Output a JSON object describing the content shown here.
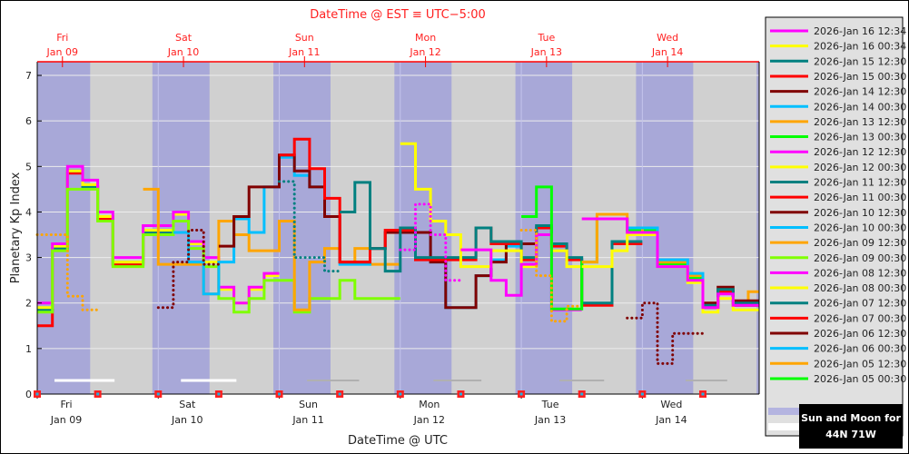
{
  "chart_data": {
    "type": "line",
    "step": true,
    "title": "DateTime @ EST ≡ UTC−5:00",
    "xlabel": "DateTime @ UTC",
    "ylabel": "Planetary Kp Index",
    "ylim": [
      0,
      7.3
    ],
    "yticks": [
      "0",
      "1",
      "2",
      "3",
      "4",
      "5",
      "6",
      "7"
    ],
    "x_range": [
      "2026-01-09T00:00Z",
      "2026-01-14T23:10Z"
    ],
    "grid": true,
    "legend_placement": "right",
    "x_ticks_utc": [
      {
        "day": "Fri",
        "date": "Jan 09"
      },
      {
        "day": "Sat",
        "date": "Jan 10"
      },
      {
        "day": "Sun",
        "date": "Jan 11"
      },
      {
        "day": "Mon",
        "date": "Jan 12"
      },
      {
        "day": "Tue",
        "date": "Jan 13"
      },
      {
        "day": "Wed",
        "date": "Jan 14"
      }
    ],
    "x_ticks_est": [
      {
        "day": "Fri",
        "date": "Jan 09"
      },
      {
        "day": "Sat",
        "date": "Jan 10"
      },
      {
        "day": "Sun",
        "date": "Jan 11"
      },
      {
        "day": "Mon",
        "date": "Jan 12"
      },
      {
        "day": "Tue",
        "date": "Jan 13"
      },
      {
        "day": "Wed",
        "date": "Jan 14"
      }
    ],
    "night_intervals": [
      [
        "2026-01-09T00:00Z",
        "2026-01-09T10:30Z"
      ],
      [
        "2026-01-09T22:50Z",
        "2026-01-10T10:10Z"
      ],
      [
        "2026-01-10T22:50Z",
        "2026-01-11T10:10Z"
      ],
      [
        "2026-01-11T22:50Z",
        "2026-01-12T10:10Z"
      ],
      [
        "2026-01-12T22:50Z",
        "2026-01-13T10:05Z"
      ],
      [
        "2026-01-13T22:45Z",
        "2026-01-14T10:05Z"
      ],
      [
        "2026-01-14T22:40Z",
        "2026-01-14T23:10Z"
      ]
    ],
    "moon_intervals": [
      [
        "2026-01-09T03:25Z",
        "2026-01-09T15:20Z"
      ],
      [
        "2026-01-10T04:30Z",
        "2026-01-10T15:30Z"
      ],
      [
        "2026-01-11T05:30Z",
        "2026-01-11T15:50Z"
      ],
      [
        "2026-01-12T06:35Z",
        "2026-01-12T16:05Z"
      ],
      [
        "2026-01-13T07:35Z",
        "2026-01-13T16:25Z"
      ],
      [
        "2026-01-14T08:35Z",
        "2026-01-14T16:50Z"
      ]
    ],
    "colors": {
      "night": "#a8a8d8",
      "day": "#d0d0d0",
      "est_axis": "#ff0000"
    },
    "series": [
      {
        "name": "2026-Jan 16 12:34",
        "color": "#ff00ff",
        "segments": [
          {
            "start": "2026-01-13T12:00Z",
            "dotted": false,
            "kp": [
              3.85,
              3.85,
              3.85,
              3.55,
              3.55,
              2.8,
              2.8,
              2.5,
              1.9,
              2.2,
              1.95,
              1.95
            ]
          }
        ]
      },
      {
        "name": "2026-Jan 16 00:34",
        "color": "#ffff00",
        "segments": [
          {
            "start": "2026-01-13T12:00Z",
            "dotted": false,
            "kp": [
              2.8,
              2.8,
              3.15,
              3.5,
              3.5,
              2.8,
              2.8,
              2.45,
              1.8,
              2.1,
              1.85,
              1.85
            ]
          }
        ]
      },
      {
        "name": "2026-Jan 15 12:30",
        "color": "#008080",
        "segments": [
          {
            "start": "2026-01-14T12:00Z",
            "dotted": false,
            "kp": [
              1.95,
              2.3,
              2.0,
              2.0
            ]
          }
        ]
      },
      {
        "name": "2026-Jan 15 00:30",
        "color": "#ff0000",
        "segments": [
          {
            "start": "2026-01-14T12:00Z",
            "dotted": false,
            "kp": [
              1.9,
              2.25,
              1.95,
              1.95
            ]
          }
        ]
      },
      {
        "name": "2026-Jan 14 12:30",
        "color": "#800000",
        "segments": [
          {
            "start": "2026-01-13T21:00Z",
            "dotted": true,
            "kp": [
              1.67,
              2.0,
              0.67,
              1.33,
              1.33
            ]
          },
          {
            "start": "2026-01-14T12:00Z",
            "dotted": false,
            "kp": [
              2.0,
              2.35,
              2.05,
              2.05
            ]
          }
        ]
      },
      {
        "name": "2026-Jan 14 00:30",
        "color": "#00bfff",
        "segments": [
          {
            "start": "2026-01-13T21:00Z",
            "dotted": false,
            "kp": [
              3.65,
              3.65,
              2.95,
              2.95,
              2.65,
              1.95,
              2.3,
              2.0,
              2.0
            ]
          }
        ]
      },
      {
        "name": "2026-Jan 13 12:30",
        "color": "#ffa500",
        "segments": [
          {
            "start": "2026-01-13T00:00Z",
            "dotted": true,
            "kp": [
              3.6,
              2.6,
              1.6,
              1.93
            ]
          },
          {
            "start": "2026-01-13T12:00Z",
            "dotted": false,
            "kp": [
              2.9,
              3.95,
              3.95,
              3.65,
              3.5,
              2.9,
              2.9,
              2.6,
              2.0,
              2.3,
              2.0,
              2.25
            ]
          }
        ]
      },
      {
        "name": "2026-Jan 13 00:30",
        "color": "#00ff00",
        "segments": [
          {
            "start": "2026-01-13T00:00Z",
            "dotted": false,
            "kp": [
              3.9,
              4.55,
              1.87,
              1.87,
              2.9,
              3.85,
              3.85,
              3.6,
              3.6,
              2.85,
              2.85,
              2.55,
              1.9,
              2.25,
              1.95,
              1.95
            ]
          }
        ]
      },
      {
        "name": "2026-Jan 12 12:30",
        "color": "#ff00ff",
        "segments": [
          {
            "start": "2026-01-12T00:00Z",
            "dotted": true,
            "kp": [
              3.17,
              4.17,
              3.5,
              2.5
            ]
          },
          {
            "start": "2026-01-12T12:00Z",
            "dotted": false,
            "kp": [
              3.17,
              3.17,
              2.5,
              2.17,
              2.85,
              3.5,
              1.85,
              1.85
            ]
          }
        ]
      },
      {
        "name": "2026-Jan 12 00:30",
        "color": "#ffff00",
        "segments": [
          {
            "start": "2026-01-12T00:00Z",
            "dotted": false,
            "kp": [
              5.5,
              4.5,
              3.8,
              3.5,
              2.8,
              2.8,
              3.15,
              3.15,
              2.8,
              3.5,
              3.15,
              2.8
            ]
          }
        ]
      },
      {
        "name": "2026-Jan 11 12:30",
        "color": "#008080",
        "segments": [
          {
            "start": "2026-01-11T00:00Z",
            "dotted": true,
            "kp": [
              4.67,
              3.0,
              3.0,
              2.7
            ]
          },
          {
            "start": "2026-01-11T12:00Z",
            "dotted": false,
            "kp": [
              4.0,
              4.65,
              3.2,
              2.7,
              3.65,
              3.0,
              3.0,
              3.0,
              3.0,
              3.65,
              3.35,
              3.35,
              3.0,
              3.7,
              3.3,
              3.0,
              2.0,
              2.0,
              3.35,
              3.35
            ]
          }
        ]
      },
      {
        "name": "2026-Jan 11 00:30",
        "color": "#ff0000",
        "segments": [
          {
            "start": "2026-01-11T00:00Z",
            "dotted": false,
            "kp": [
              5.25,
              5.6,
              4.95,
              4.3,
              2.9,
              2.9,
              3.2,
              3.6,
              3.6,
              2.95,
              2.95,
              2.95,
              2.95,
              3.65,
              3.3,
              3.3,
              2.95,
              3.65,
              3.25,
              2.95,
              1.95,
              1.95,
              3.3,
              3.3
            ]
          }
        ]
      },
      {
        "name": "2026-Jan 10 12:30",
        "color": "#800000",
        "segments": [
          {
            "start": "2026-01-10T00:00Z",
            "dotted": true,
            "kp": [
              1.9,
              2.9,
              3.6,
              2.85
            ]
          },
          {
            "start": "2026-01-10T12:00Z",
            "dotted": false,
            "kp": [
              3.25,
              3.9,
              4.55,
              4.55,
              5.25,
              4.9,
              4.55,
              3.9,
              2.9,
              2.9,
              3.2,
              3.55,
              3.55,
              3.55,
              2.9,
              1.9,
              1.9,
              2.6,
              2.9,
              3.3,
              3.3
            ]
          }
        ]
      },
      {
        "name": "2026-Jan 10 00:30",
        "color": "#00bfff",
        "segments": [
          {
            "start": "2026-01-10T03:00Z",
            "dotted": false,
            "kp": [
              3.55,
              2.9,
              2.2,
              2.9,
              3.85,
              3.55,
              4.55,
              5.2,
              4.8,
              4.55,
              3.9,
              2.85,
              2.85,
              3.2,
              3.55,
              3.55,
              3.55,
              2.9,
              1.9,
              1.9,
              2.6,
              2.95,
              3.25
            ]
          }
        ]
      },
      {
        "name": "2026-Jan 09 12:30",
        "color": "#ffa500",
        "segments": [
          {
            "start": "2026-01-09T00:00Z",
            "dotted": true,
            "kp": [
              3.5,
              3.5,
              2.15,
              1.85
            ]
          },
          {
            "start": "2026-01-09T21:00Z",
            "dotted": false,
            "kp": [
              4.5,
              2.85,
              2.85,
              2.85,
              2.2,
              3.8,
              3.5,
              3.15,
              3.15,
              3.8,
              1.85,
              2.9,
              3.2,
              2.9,
              3.2,
              2.85,
              2.85
            ]
          }
        ]
      },
      {
        "name": "2026-Jan 09 00:30",
        "color": "#7fff00",
        "segments": [
          {
            "start": "2026-01-09T00:00Z",
            "dotted": false,
            "kp": [
              1.8,
              3.15,
              4.5,
              4.5,
              3.8,
              2.8,
              2.8,
              3.5,
              3.5,
              3.8,
              3.2,
              2.8,
              2.1,
              1.8,
              2.1,
              2.5,
              2.5,
              1.8,
              2.1,
              2.1,
              2.5,
              2.1,
              2.1,
              2.1
            ]
          }
        ]
      },
      {
        "name": "2026-Jan 08 12:30",
        "color": "#ff00ff",
        "segments": [
          {
            "start": "2026-01-09T00:00Z",
            "dotted": false,
            "kp": [
              2.0,
              3.3,
              5.0,
              4.7,
              4.0,
              3.0,
              3.0,
              3.7,
              3.7,
              4.0,
              3.35,
              3.0,
              2.35,
              2.0,
              2.35,
              2.65
            ]
          }
        ]
      },
      {
        "name": "2026-Jan 08 00:30",
        "color": "#ffff00",
        "segments": [
          {
            "start": "2026-01-09T00:00Z",
            "dotted": false,
            "kp": [
              1.9,
              3.25,
              4.9,
              4.6,
              3.9,
              2.9,
              2.9,
              3.6,
              3.6,
              3.95,
              3.3,
              2.9,
              2.3,
              2.0,
              2.3,
              2.6
            ]
          }
        ]
      },
      {
        "name": "2026-Jan 07 12:30",
        "color": "#008080",
        "segments": [
          {
            "start": "2026-01-09T00:00Z",
            "dotted": false,
            "kp": [
              1.85,
              3.2,
              4.9,
              4.55,
              3.9,
              2.9,
              2.9,
              3.55,
              3.55
            ]
          }
        ]
      },
      {
        "name": "2026-Jan 07 00:30",
        "color": "#ff0000",
        "segments": [
          {
            "start": "2026-01-09T00:00Z",
            "dotted": false,
            "kp": [
              1.5,
              3.2,
              4.85,
              4.55,
              3.85,
              2.85,
              2.85,
              3.55
            ]
          }
        ]
      },
      {
        "name": "2026-Jan 06 12:30",
        "color": "#800000",
        "segments": []
      },
      {
        "name": "2026-Jan 06 00:30",
        "color": "#00bfff",
        "segments": []
      },
      {
        "name": "2026-Jan 05 12:30",
        "color": "#ffa500",
        "segments": []
      },
      {
        "name": "2026-Jan 05 00:30",
        "color": "#00ff00",
        "segments": []
      }
    ]
  },
  "sun_moon_box": {
    "line1": "Sun and Moon for",
    "line2": "44N 71W"
  }
}
